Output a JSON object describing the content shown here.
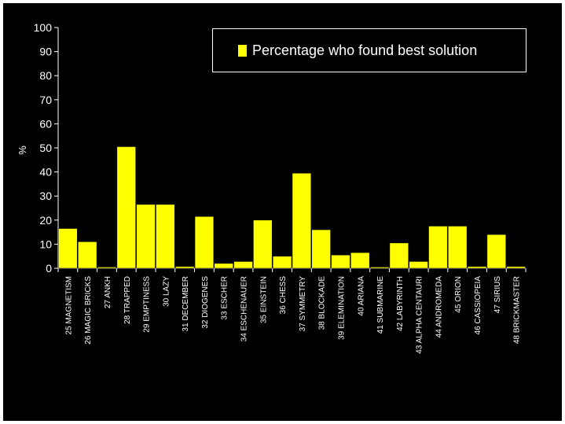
{
  "chart_data": {
    "type": "bar",
    "ylabel": "%",
    "ylim": [
      0,
      100
    ],
    "yticks": [
      0,
      10,
      20,
      30,
      40,
      50,
      60,
      70,
      80,
      90,
      100
    ],
    "bar_color": "#ffff00",
    "background": "#000000",
    "grid": false,
    "legend_position": "top-right",
    "categories": [
      "25 MAGNETISM",
      "26 MAGIC BRICKS",
      "27 ANKH",
      "28 TRAPPED",
      "29 EMPTINESS",
      "30 LAZY",
      "31 DECEMBER",
      "32 DIOGENES",
      "33 ESCHER",
      "34 ESCHENAUER",
      "35 EINSTEIN",
      "36 CHESS",
      "37 SYMMETRY",
      "38 BLOCKADE",
      "39 ELEMINATION",
      "40 ARIANA",
      "41 SUBMARINE",
      "42 LABYRINTH",
      "43 ALPHA CENTAURI",
      "44 ANDROMEDA",
      "45 ORION",
      "46 CASSIOPEIA",
      "47 SIRIUS",
      "48 BRICKMASTER"
    ],
    "series": [
      {
        "name": "Percentage who found best solution",
        "values": [
          16.5,
          11,
          0.5,
          50.5,
          26.5,
          26.5,
          0.7,
          21.5,
          2,
          2.8,
          20,
          5,
          39.5,
          16,
          5.5,
          6.5,
          0.5,
          10.5,
          2.8,
          17.5,
          17.5,
          0.7,
          14,
          0.7
        ]
      }
    ]
  }
}
